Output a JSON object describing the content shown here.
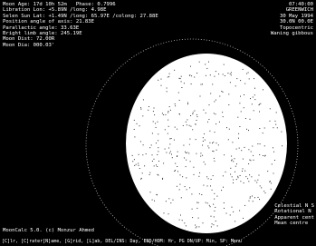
{
  "info": [
    "Moon Age: 17d 10h 52m   Phase: 0.7996",
    "Libration Lon: +5.89N /long: 4.98E",
    "Selen Sun Lat: +1.49N /long: 65.97E /colong: 27.88E",
    "Position angle of axis: 21.83E",
    "Parallactic angle: 33.63E",
    "Bright limb angle: 245.19E",
    "Moon Dist: 72.00R",
    "Moon Dia: 000.03'"
  ],
  "status": [
    "07:40:00",
    "GREENWICH",
    "30 May 1994",
    "30.0N 00.0E",
    "Topocentric",
    "Waning gibbous"
  ],
  "legend": [
    "Celestial N S",
    "Rotational N",
    "Apparent cent",
    "Mean centre"
  ],
  "credit": "MoonCalc 5.0. (c) Monzur Ahmed",
  "help": "[C]lr, [C]rater[N]ame, [G]rid, [L]ab, DEL/INS: Day, END/HOM: Hr, PG DN/UP: Min, SP: Menu"
}
